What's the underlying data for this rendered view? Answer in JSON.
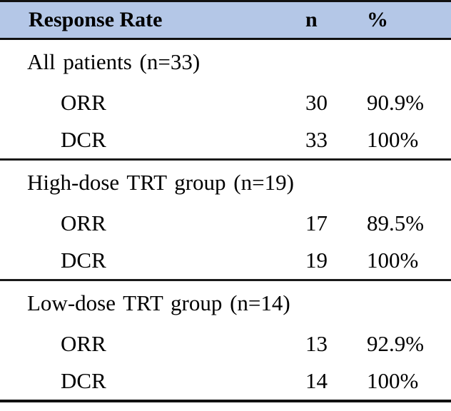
{
  "table": {
    "header": {
      "label": "Response Rate",
      "n": "n",
      "pct": "%"
    },
    "sections": [
      {
        "title": "All patients (n=33)",
        "rows": [
          {
            "label": "ORR",
            "n": "30",
            "pct": "90.9%"
          },
          {
            "label": "DCR",
            "n": "33",
            "pct": "100%"
          }
        ]
      },
      {
        "title": "High-dose TRT group (n=19)",
        "rows": [
          {
            "label": "ORR",
            "n": "17",
            "pct": "89.5%"
          },
          {
            "label": "DCR",
            "n": "19",
            "pct": "100%"
          }
        ]
      },
      {
        "title": "Low-dose TRT group (n=14)",
        "rows": [
          {
            "label": "ORR",
            "n": "13",
            "pct": "92.9%"
          },
          {
            "label": "DCR",
            "n": "14",
            "pct": "100%"
          }
        ]
      }
    ],
    "colors": {
      "header_bg": "#b4c7e7",
      "rule": "#111111",
      "text": "#000000",
      "background": "#ffffff"
    }
  }
}
